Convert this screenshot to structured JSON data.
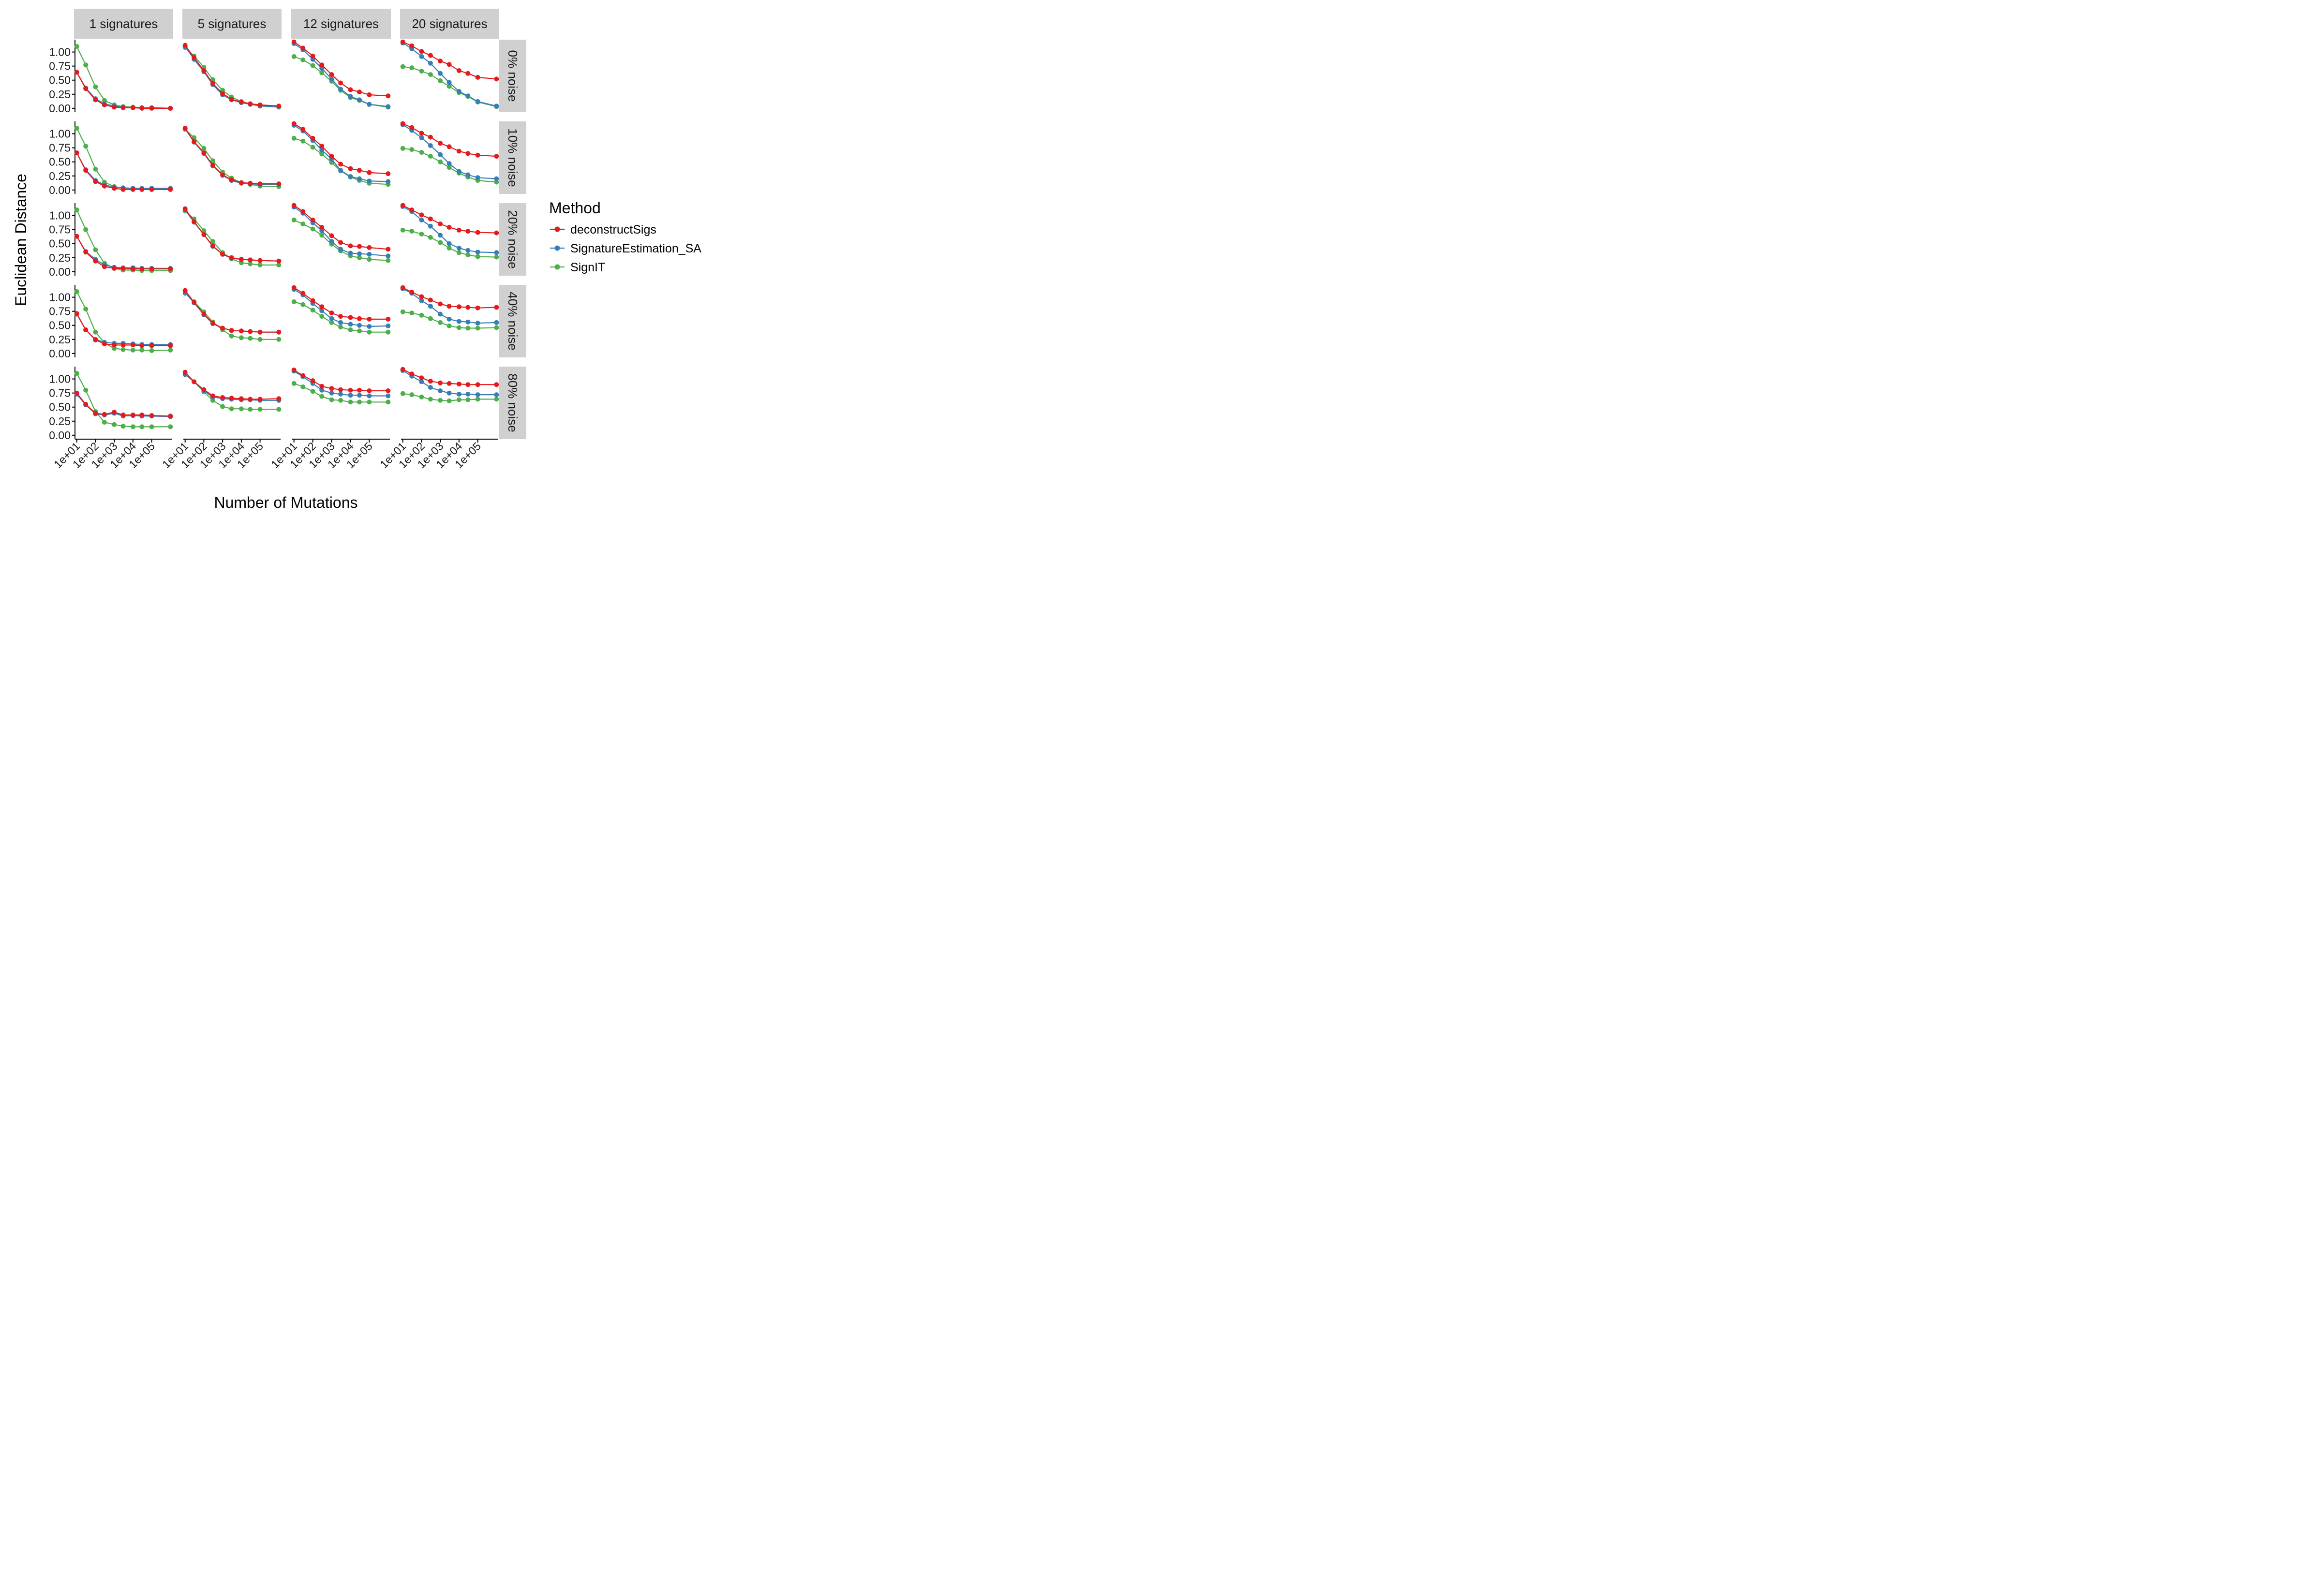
{
  "chart_data": {
    "type": "line",
    "xlabel": "Number of Mutations",
    "ylabel": "Euclidean Distance",
    "x_scale": "log10",
    "x": [
      10,
      30,
      100,
      300,
      1000,
      3000,
      10000,
      30000,
      100000,
      1000000
    ],
    "xticks": [
      10,
      100,
      1000,
      10000,
      100000
    ],
    "xtick_labels": [
      "1e+01",
      "1e+02",
      "1e+03",
      "1e+04",
      "1e+05"
    ],
    "ylim": [
      0,
      1.2
    ],
    "yticks": [
      0,
      0.25,
      0.5,
      0.75,
      1.0
    ],
    "ytick_labels": [
      "0.00",
      "0.25",
      "0.50",
      "0.75",
      "1.00"
    ],
    "grid": false,
    "legend": {
      "title": "Method",
      "placement": "right",
      "entries": [
        "deconstructSigs",
        "SignatureEstimation_SA",
        "SignIT"
      ]
    },
    "colors": {
      "deconstructSigs": "#e41a1c",
      "SignatureEstimation_SA": "#377eb8",
      "SignIT": "#4daf4a",
      "strip_background": "#d0d0d0"
    },
    "columns": [
      "1 signatures",
      "5 signatures",
      "12 signatures",
      "20 signatures"
    ],
    "rows": [
      "0% noise",
      "10% noise",
      "20% noise",
      "40% noise",
      "80% noise"
    ],
    "panels": [
      [
        {
          "deconstructSigs": [
            0.64,
            0.35,
            0.15,
            0.06,
            0.02,
            0.01,
            0.01,
            0.0,
            0.0,
            0.0
          ],
          "SignatureEstimation_SA": [
            0.64,
            0.36,
            0.17,
            0.08,
            0.04,
            0.02,
            0.01,
            0.01,
            0.01,
            0.0
          ],
          "SignIT": [
            1.1,
            0.77,
            0.38,
            0.14,
            0.06,
            0.03,
            0.02,
            0.01,
            0.01,
            0.0
          ]
        },
        {
          "deconstructSigs": [
            0.66,
            0.35,
            0.15,
            0.07,
            0.03,
            0.01,
            0.01,
            0.01,
            0.01,
            0.01
          ],
          "SignatureEstimation_SA": [
            0.66,
            0.36,
            0.17,
            0.09,
            0.05,
            0.04,
            0.03,
            0.03,
            0.03,
            0.03
          ],
          "SignIT": [
            1.1,
            0.78,
            0.37,
            0.14,
            0.06,
            0.03,
            0.02,
            0.01,
            0.01,
            0.01
          ]
        },
        {
          "deconstructSigs": [
            0.63,
            0.35,
            0.19,
            0.09,
            0.06,
            0.06,
            0.05,
            0.05,
            0.05,
            0.05
          ],
          "SignatureEstimation_SA": [
            0.63,
            0.36,
            0.22,
            0.12,
            0.08,
            0.07,
            0.07,
            0.06,
            0.06,
            0.06
          ],
          "SignIT": [
            1.1,
            0.75,
            0.39,
            0.15,
            0.06,
            0.03,
            0.03,
            0.02,
            0.02,
            0.02
          ]
        },
        {
          "deconstructSigs": [
            0.71,
            0.42,
            0.24,
            0.17,
            0.15,
            0.15,
            0.15,
            0.14,
            0.14,
            0.14
          ],
          "SignatureEstimation_SA": [
            0.7,
            0.42,
            0.25,
            0.2,
            0.18,
            0.18,
            0.17,
            0.16,
            0.16,
            0.16
          ],
          "SignIT": [
            1.1,
            0.79,
            0.38,
            0.19,
            0.09,
            0.07,
            0.06,
            0.06,
            0.05,
            0.06
          ]
        },
        {
          "deconstructSigs": [
            0.75,
            0.55,
            0.39,
            0.37,
            0.41,
            0.36,
            0.36,
            0.36,
            0.35,
            0.34
          ],
          "SignatureEstimation_SA": [
            0.73,
            0.54,
            0.38,
            0.36,
            0.39,
            0.34,
            0.35,
            0.34,
            0.34,
            0.33
          ],
          "SignIT": [
            1.1,
            0.8,
            0.42,
            0.23,
            0.19,
            0.16,
            0.15,
            0.15,
            0.15,
            0.15
          ]
        }
      ],
      [
        {
          "deconstructSigs": [
            1.12,
            0.9,
            0.67,
            0.44,
            0.26,
            0.16,
            0.11,
            0.08,
            0.06,
            0.04
          ],
          "SignatureEstimation_SA": [
            1.1,
            0.87,
            0.65,
            0.42,
            0.24,
            0.15,
            0.1,
            0.07,
            0.04,
            0.03
          ],
          "SignIT": [
            1.08,
            0.93,
            0.73,
            0.51,
            0.32,
            0.2,
            0.12,
            0.08,
            0.04,
            0.02
          ]
        },
        {
          "deconstructSigs": [
            1.1,
            0.86,
            0.66,
            0.44,
            0.27,
            0.18,
            0.13,
            0.12,
            0.11,
            0.11
          ],
          "SignatureEstimation_SA": [
            1.09,
            0.85,
            0.65,
            0.43,
            0.26,
            0.17,
            0.12,
            0.11,
            0.1,
            0.1
          ],
          "SignIT": [
            1.08,
            0.93,
            0.74,
            0.52,
            0.32,
            0.21,
            0.13,
            0.1,
            0.07,
            0.06
          ]
        },
        {
          "deconstructSigs": [
            1.12,
            0.89,
            0.66,
            0.46,
            0.31,
            0.25,
            0.22,
            0.21,
            0.2,
            0.19
          ],
          "SignatureEstimation_SA": [
            1.1,
            0.88,
            0.66,
            0.45,
            0.31,
            0.24,
            0.22,
            0.21,
            0.2,
            0.19
          ],
          "SignIT": [
            1.08,
            0.94,
            0.73,
            0.54,
            0.34,
            0.23,
            0.16,
            0.14,
            0.12,
            0.12
          ]
        },
        {
          "deconstructSigs": [
            1.12,
            0.91,
            0.7,
            0.54,
            0.45,
            0.41,
            0.4,
            0.39,
            0.38,
            0.38
          ],
          "SignatureEstimation_SA": [
            1.08,
            0.9,
            0.69,
            0.53,
            0.45,
            0.41,
            0.4,
            0.39,
            0.38,
            0.38
          ],
          "SignIT": [
            1.07,
            0.92,
            0.74,
            0.56,
            0.42,
            0.31,
            0.28,
            0.27,
            0.25,
            0.25
          ]
        },
        {
          "deconstructSigs": [
            1.12,
            0.95,
            0.81,
            0.7,
            0.67,
            0.66,
            0.65,
            0.64,
            0.64,
            0.65
          ],
          "SignatureEstimation_SA": [
            1.08,
            0.95,
            0.79,
            0.68,
            0.65,
            0.64,
            0.63,
            0.63,
            0.62,
            0.62
          ],
          "SignIT": [
            1.08,
            0.95,
            0.77,
            0.62,
            0.51,
            0.47,
            0.47,
            0.46,
            0.46,
            0.46
          ]
        }
      ],
      [
        {
          "deconstructSigs": [
            1.18,
            1.07,
            0.93,
            0.77,
            0.6,
            0.45,
            0.33,
            0.29,
            0.24,
            0.22
          ],
          "SignatureEstimation_SA": [
            1.15,
            1.04,
            0.87,
            0.71,
            0.52,
            0.34,
            0.21,
            0.15,
            0.07,
            0.03
          ],
          "SignIT": [
            0.92,
            0.86,
            0.76,
            0.63,
            0.48,
            0.32,
            0.19,
            0.14,
            0.07,
            0.02
          ]
        },
        {
          "deconstructSigs": [
            1.18,
            1.08,
            0.92,
            0.78,
            0.6,
            0.46,
            0.38,
            0.35,
            0.31,
            0.29
          ],
          "SignatureEstimation_SA": [
            1.15,
            1.05,
            0.88,
            0.71,
            0.55,
            0.35,
            0.24,
            0.2,
            0.16,
            0.15
          ],
          "SignIT": [
            0.92,
            0.87,
            0.76,
            0.64,
            0.49,
            0.34,
            0.23,
            0.17,
            0.12,
            0.1
          ]
        },
        {
          "deconstructSigs": [
            1.18,
            1.07,
            0.92,
            0.79,
            0.64,
            0.52,
            0.46,
            0.45,
            0.43,
            0.4
          ],
          "SignatureEstimation_SA": [
            1.15,
            1.04,
            0.87,
            0.73,
            0.54,
            0.4,
            0.33,
            0.32,
            0.31,
            0.28
          ],
          "SignIT": [
            0.92,
            0.85,
            0.76,
            0.65,
            0.49,
            0.37,
            0.28,
            0.25,
            0.22,
            0.2
          ]
        },
        {
          "deconstructSigs": [
            1.17,
            1.07,
            0.94,
            0.83,
            0.72,
            0.66,
            0.64,
            0.62,
            0.61,
            0.61
          ],
          "SignatureEstimation_SA": [
            1.14,
            1.04,
            0.89,
            0.76,
            0.62,
            0.55,
            0.52,
            0.5,
            0.48,
            0.49
          ],
          "SignIT": [
            0.92,
            0.87,
            0.77,
            0.66,
            0.55,
            0.47,
            0.42,
            0.4,
            0.38,
            0.38
          ]
        },
        {
          "deconstructSigs": [
            1.16,
            1.06,
            0.97,
            0.87,
            0.83,
            0.81,
            0.8,
            0.8,
            0.79,
            0.79
          ],
          "SignatureEstimation_SA": [
            1.14,
            1.04,
            0.92,
            0.8,
            0.75,
            0.73,
            0.71,
            0.71,
            0.7,
            0.7
          ],
          "SignIT": [
            0.92,
            0.86,
            0.78,
            0.69,
            0.63,
            0.62,
            0.59,
            0.59,
            0.59,
            0.59
          ]
        }
      ],
      [
        {
          "deconstructSigs": [
            1.18,
            1.11,
            1.01,
            0.94,
            0.84,
            0.78,
            0.67,
            0.62,
            0.55,
            0.52
          ],
          "SignatureEstimation_SA": [
            1.16,
            1.06,
            0.92,
            0.8,
            0.62,
            0.46,
            0.3,
            0.22,
            0.12,
            0.04
          ],
          "SignIT": [
            0.74,
            0.72,
            0.66,
            0.6,
            0.49,
            0.39,
            0.28,
            0.21,
            0.11,
            0.03
          ]
        },
        {
          "deconstructSigs": [
            1.18,
            1.11,
            1.01,
            0.94,
            0.83,
            0.77,
            0.69,
            0.65,
            0.62,
            0.6
          ],
          "SignatureEstimation_SA": [
            1.16,
            1.06,
            0.93,
            0.79,
            0.63,
            0.47,
            0.33,
            0.27,
            0.22,
            0.2
          ],
          "SignIT": [
            0.74,
            0.72,
            0.67,
            0.6,
            0.5,
            0.4,
            0.3,
            0.23,
            0.17,
            0.14
          ]
        },
        {
          "deconstructSigs": [
            1.18,
            1.1,
            1.01,
            0.94,
            0.85,
            0.79,
            0.74,
            0.72,
            0.7,
            0.69
          ],
          "SignatureEstimation_SA": [
            1.16,
            1.07,
            0.92,
            0.81,
            0.65,
            0.5,
            0.42,
            0.38,
            0.35,
            0.34
          ],
          "SignIT": [
            0.74,
            0.72,
            0.67,
            0.61,
            0.52,
            0.42,
            0.34,
            0.3,
            0.27,
            0.26
          ]
        },
        {
          "deconstructSigs": [
            1.17,
            1.09,
            1.01,
            0.95,
            0.88,
            0.84,
            0.83,
            0.82,
            0.81,
            0.82
          ],
          "SignatureEstimation_SA": [
            1.15,
            1.07,
            0.94,
            0.84,
            0.7,
            0.61,
            0.57,
            0.56,
            0.54,
            0.55
          ],
          "SignIT": [
            0.74,
            0.72,
            0.68,
            0.62,
            0.55,
            0.49,
            0.46,
            0.45,
            0.45,
            0.46
          ]
        },
        {
          "deconstructSigs": [
            1.17,
            1.09,
            1.02,
            0.96,
            0.93,
            0.92,
            0.91,
            0.9,
            0.9,
            0.9
          ],
          "SignatureEstimation_SA": [
            1.15,
            1.05,
            0.95,
            0.85,
            0.79,
            0.75,
            0.73,
            0.73,
            0.72,
            0.72
          ],
          "SignIT": [
            0.74,
            0.72,
            0.68,
            0.64,
            0.62,
            0.61,
            0.63,
            0.63,
            0.64,
            0.64
          ]
        }
      ]
    ]
  }
}
